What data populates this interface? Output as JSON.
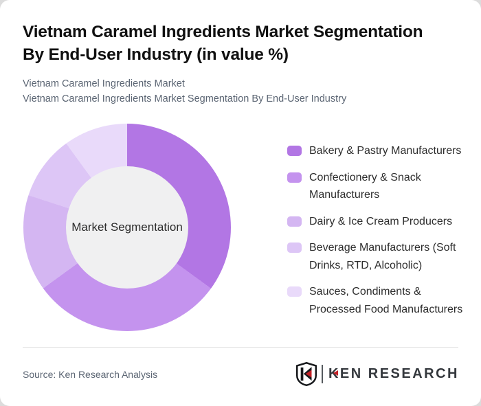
{
  "page": {
    "title_lines": [
      "Vietnam Caramel Ingredients Market Segmentation",
      "By End-User Industry (in value %)"
    ],
    "subtitle_line1": "Vietnam Caramel Ingredients Market",
    "subtitle_line2": "Vietnam Caramel Ingredients Market Segmentation By End-User Industry"
  },
  "chart_data": {
    "type": "pie",
    "variant": "donut",
    "title": "Vietnam Caramel Ingredients Market Segmentation By End-User Industry (in value %)",
    "center_label": "Market Segmentation",
    "start_angle_deg": 0,
    "direction": "clockwise",
    "legend_position": "right",
    "hole_color": "#f0f0f1",
    "segments": [
      {
        "label": "Bakery & Pastry Manufacturers",
        "value": 35,
        "color": "#b276e4"
      },
      {
        "label": "Confectionery & Snack Manufacturers",
        "value": 30,
        "color": "#c493ee"
      },
      {
        "label": "Dairy & Ice Cream Producers",
        "value": 15,
        "color": "#d4b6f2"
      },
      {
        "label": "Beverage Manufacturers (Soft Drinks, RTD, Alcoholic)",
        "value": 10,
        "color": "#ddc6f6"
      },
      {
        "label": "Sauces, Condiments & Processed Food Manufacturers",
        "value": 10,
        "color": "#e9dafa"
      }
    ]
  },
  "footer": {
    "source_text": "Source: Ken Research Analysis",
    "logo": {
      "monogram": "K",
      "brand_first_letter": "K",
      "brand_rest": "EN RESEARCH",
      "accent_color": "#c22026"
    }
  }
}
